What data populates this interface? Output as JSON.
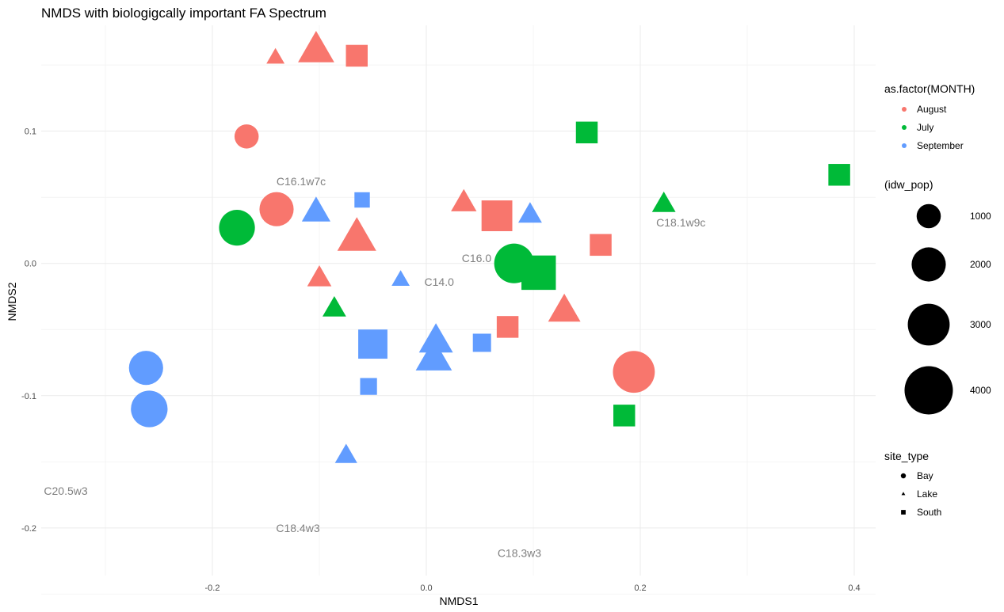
{
  "chart_data": {
    "type": "scatter",
    "title": "NMDS with biologigcally important FA Spectrum",
    "xlabel": "NMDS1",
    "ylabel": "NMDS2",
    "xlim": [
      -0.36,
      0.42
    ],
    "ylim": [
      -0.236,
      0.18
    ],
    "x_ticks": [
      -0.2,
      0.0,
      0.2,
      0.4
    ],
    "x_tick_labels": [
      "-0.2",
      "0.0",
      "0.2",
      "0.4"
    ],
    "y_ticks": [
      -0.2,
      -0.1,
      0.0,
      0.1
    ],
    "y_tick_labels": [
      "-0.2",
      "-0.1",
      "0.0",
      "0.1"
    ],
    "grid": true,
    "legend_position": "right",
    "colors": {
      "August": "#F8766D",
      "July": "#00BA38",
      "September": "#619CFF"
    },
    "legend": {
      "color_title": "as.factor(MONTH)",
      "color_entries": [
        "August",
        "July",
        "September"
      ],
      "size_title": "(idw_pop)",
      "size_entries": [
        1000,
        2000,
        3000,
        4000
      ],
      "size_labels": [
        "1000",
        "2000",
        "3000",
        "4000"
      ],
      "shape_title": "site_type",
      "shape_entries": [
        "Bay",
        "Lake",
        "South"
      ]
    },
    "fa_labels": [
      {
        "text": "C16.1w7c",
        "x": -0.117,
        "y": 0.062
      },
      {
        "text": "C18.1w9c",
        "x": 0.238,
        "y": 0.031
      },
      {
        "text": "C16.0",
        "x": 0.047,
        "y": 0.004
      },
      {
        "text": "C14.0",
        "x": 0.012,
        "y": -0.014
      },
      {
        "text": "C20.5w3",
        "x": -0.337,
        "y": -0.172
      },
      {
        "text": "C18.4w3",
        "x": -0.12,
        "y": -0.2
      },
      {
        "text": "C18.3w3",
        "x": 0.087,
        "y": -0.219
      }
    ],
    "points": [
      {
        "x": -0.141,
        "y": 0.155,
        "month": "August",
        "site": "Lake",
        "pop": 1000
      },
      {
        "x": -0.103,
        "y": 0.16,
        "month": "August",
        "site": "Lake",
        "pop": 4000
      },
      {
        "x": -0.065,
        "y": 0.157,
        "month": "August",
        "site": "South",
        "pop": 1000
      },
      {
        "x": -0.168,
        "y": 0.096,
        "month": "August",
        "site": "Bay",
        "pop": 1000
      },
      {
        "x": 0.15,
        "y": 0.099,
        "month": "July",
        "site": "South",
        "pop": 1000
      },
      {
        "x": 0.386,
        "y": 0.067,
        "month": "July",
        "site": "South",
        "pop": 1000
      },
      {
        "x": -0.14,
        "y": 0.041,
        "month": "August",
        "site": "Bay",
        "pop": 2000
      },
      {
        "x": -0.06,
        "y": 0.048,
        "month": "September",
        "site": "South",
        "pop": 500
      },
      {
        "x": -0.103,
        "y": 0.038,
        "month": "September",
        "site": "Lake",
        "pop": 2500
      },
      {
        "x": 0.035,
        "y": 0.045,
        "month": "August",
        "site": "Lake",
        "pop": 2000
      },
      {
        "x": 0.066,
        "y": 0.036,
        "month": "August",
        "site": "South",
        "pop": 2000
      },
      {
        "x": 0.097,
        "y": 0.036,
        "month": "September",
        "site": "Lake",
        "pop": 1700
      },
      {
        "x": 0.222,
        "y": 0.044,
        "month": "July",
        "site": "Lake",
        "pop": 1700
      },
      {
        "x": -0.177,
        "y": 0.027,
        "month": "July",
        "site": "Bay",
        "pop": 2200
      },
      {
        "x": -0.065,
        "y": 0.018,
        "month": "August",
        "site": "Lake",
        "pop": 4600
      },
      {
        "x": 0.163,
        "y": 0.014,
        "month": "August",
        "site": "South",
        "pop": 1000
      },
      {
        "x": 0.082,
        "y": 0.0,
        "month": "July",
        "site": "Bay",
        "pop": 2700
      },
      {
        "x": 0.105,
        "y": -0.007,
        "month": "July",
        "site": "South",
        "pop": 2500
      },
      {
        "x": -0.1,
        "y": -0.012,
        "month": "August",
        "site": "Lake",
        "pop": 1800
      },
      {
        "x": -0.024,
        "y": -0.013,
        "month": "September",
        "site": "Lake",
        "pop": 1000
      },
      {
        "x": -0.086,
        "y": -0.035,
        "month": "July",
        "site": "Lake",
        "pop": 1700
      },
      {
        "x": 0.129,
        "y": -0.037,
        "month": "August",
        "site": "Lake",
        "pop": 3200
      },
      {
        "x": 0.076,
        "y": -0.048,
        "month": "August",
        "site": "South",
        "pop": 1000
      },
      {
        "x": 0.052,
        "y": -0.06,
        "month": "September",
        "site": "South",
        "pop": 700
      },
      {
        "x": -0.05,
        "y": -0.061,
        "month": "September",
        "site": "South",
        "pop": 1800
      },
      {
        "x": 0.009,
        "y": -0.06,
        "month": "September",
        "site": "Lake",
        "pop": 3500
      },
      {
        "x": 0.007,
        "y": -0.073,
        "month": "September",
        "site": "Lake",
        "pop": 4000
      },
      {
        "x": -0.262,
        "y": -0.079,
        "month": "September",
        "site": "Bay",
        "pop": 2000
      },
      {
        "x": 0.194,
        "y": -0.082,
        "month": "August",
        "site": "Bay",
        "pop": 3000
      },
      {
        "x": -0.054,
        "y": -0.093,
        "month": "September",
        "site": "South",
        "pop": 600
      },
      {
        "x": -0.259,
        "y": -0.11,
        "month": "September",
        "site": "Bay",
        "pop": 2300
      },
      {
        "x": 0.185,
        "y": -0.115,
        "month": "July",
        "site": "South",
        "pop": 1000
      },
      {
        "x": -0.075,
        "y": -0.146,
        "month": "September",
        "site": "Lake",
        "pop": 1500
      }
    ]
  }
}
